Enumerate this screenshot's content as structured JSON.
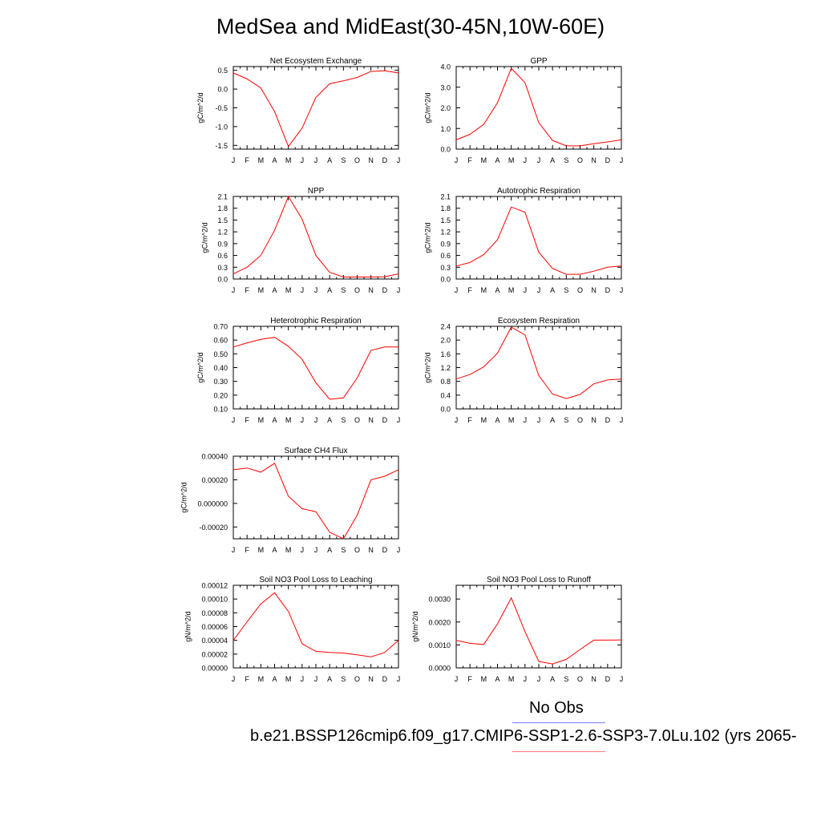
{
  "title": "MedSea and MidEast(30-45N,10W-60E)",
  "legend": {
    "obs_label": "No Obs",
    "case_label": "b.e21.BSSP126cmip6.f09_g17.CMIP6-SSP1-2.6-SSP3-7.0Lu.102 (yrs 2065-"
  },
  "colors": {
    "series": "#ff0000",
    "obs_line": "#7b7bff",
    "case_line": "#ff7b7b"
  },
  "months": [
    "J",
    "F",
    "M",
    "A",
    "M",
    "J",
    "J",
    "A",
    "S",
    "O",
    "N",
    "D",
    "J"
  ],
  "chart_data": [
    {
      "type": "line",
      "title": "Net Ecosystem Exchange",
      "ylabel": "gC/m^2/d",
      "ylim": [
        -1.6,
        0.6
      ],
      "yticks": [
        0.5,
        0.0,
        -0.5,
        -1.0,
        -1.5
      ],
      "ytick_labels": [
        "0.5",
        "0.0",
        "-0.5",
        "-1.0",
        "-1.5"
      ],
      "values": [
        0.43,
        0.27,
        0.03,
        -0.6,
        -1.53,
        -1.04,
        -0.22,
        0.14,
        0.22,
        0.31,
        0.47,
        0.49,
        0.43
      ]
    },
    {
      "type": "line",
      "title": "GPP",
      "ylabel": "gC/m^2/d",
      "ylim": [
        0.0,
        4.0
      ],
      "yticks": [
        4.0,
        3.0,
        2.0,
        1.0,
        0.0
      ],
      "ytick_labels": [
        "4.0",
        "3.0",
        "2.0",
        "1.0",
        "0.0"
      ],
      "values": [
        0.45,
        0.72,
        1.2,
        2.25,
        3.92,
        3.22,
        1.28,
        0.42,
        0.16,
        0.16,
        0.26,
        0.35,
        0.45
      ]
    },
    {
      "type": "line",
      "title": "NPP",
      "ylabel": "gC/m^2/d",
      "ylim": [
        0.0,
        2.1
      ],
      "yticks": [
        2.1,
        1.8,
        1.5,
        1.2,
        0.9,
        0.6,
        0.3,
        0.0
      ],
      "ytick_labels": [
        "2.1",
        "1.8",
        "1.5",
        "1.2",
        "0.9",
        "0.6",
        "0.3",
        "0.0"
      ],
      "values": [
        0.13,
        0.3,
        0.6,
        1.24,
        2.1,
        1.52,
        0.6,
        0.17,
        0.05,
        0.05,
        0.05,
        0.06,
        0.13
      ]
    },
    {
      "type": "line",
      "title": "Autotrophic Respiration",
      "ylabel": "gC/m^2/d",
      "ylim": [
        0.0,
        2.1
      ],
      "yticks": [
        2.1,
        1.8,
        1.5,
        1.2,
        0.9,
        0.6,
        0.3,
        0.0
      ],
      "ytick_labels": [
        "2.1",
        "1.8",
        "1.5",
        "1.2",
        "0.9",
        "0.6",
        "0.3",
        "0.0"
      ],
      "values": [
        0.33,
        0.42,
        0.62,
        1.0,
        1.83,
        1.7,
        0.68,
        0.27,
        0.12,
        0.12,
        0.2,
        0.3,
        0.33
      ]
    },
    {
      "type": "line",
      "title": "Heterotrophic Respiration",
      "ylabel": "gC/m^2/d",
      "ylim": [
        0.1,
        0.7
      ],
      "yticks": [
        0.7,
        0.6,
        0.5,
        0.4,
        0.3,
        0.2,
        0.1
      ],
      "ytick_labels": [
        "0.70",
        "0.60",
        "0.50",
        "0.40",
        "0.30",
        "0.20",
        "0.10"
      ],
      "values": [
        0.55,
        0.58,
        0.605,
        0.62,
        0.555,
        0.46,
        0.29,
        0.17,
        0.18,
        0.325,
        0.525,
        0.55,
        0.55
      ]
    },
    {
      "type": "line",
      "title": "Ecosystem Respiration",
      "ylabel": "gC/m^2/d",
      "ylim": [
        0.0,
        2.4
      ],
      "yticks": [
        2.4,
        2.0,
        1.6,
        1.2,
        0.8,
        0.4,
        0.0
      ],
      "ytick_labels": [
        "2.4",
        "2.0",
        "1.6",
        "1.2",
        "0.8",
        "0.4",
        "0.0"
      ],
      "values": [
        0.87,
        1.0,
        1.22,
        1.62,
        2.38,
        2.15,
        0.97,
        0.43,
        0.3,
        0.42,
        0.73,
        0.84,
        0.87
      ]
    },
    {
      "type": "line",
      "title": "Surface CH4 Flux",
      "ylabel": "gC/m^2/d",
      "ylim": [
        -0.0003,
        0.0004
      ],
      "yticks": [
        0.0004,
        0.0002,
        0.0,
        -0.0002
      ],
      "ytick_labels": [
        "0.00040",
        "0.00020",
        "0.000000",
        "-0.00020"
      ],
      "values": [
        0.000285,
        0.0003,
        0.000265,
        0.00034,
        6e-05,
        -4.5e-05,
        -7e-05,
        -0.000245,
        -0.0003,
        -0.0001,
        0.0002,
        0.00023,
        0.000285
      ]
    },
    {
      "type": "line",
      "title": "Soil NO3 Pool Loss to Leaching",
      "ylabel": "gN/m^2/d",
      "ylim": [
        0.0,
        0.00012
      ],
      "yticks": [
        0.00012,
        0.0001,
        8e-05,
        6e-05,
        4e-05,
        2e-05,
        0.0
      ],
      "ytick_labels": [
        "0.00012",
        "0.00010",
        "0.00008",
        "0.00006",
        "0.00004",
        "0.00002",
        "0.00000"
      ],
      "values": [
        4e-05,
        6.7e-05,
        9.3e-05,
        0.000109,
        8.2e-05,
        3.5e-05,
        2.4e-05,
        2.25e-05,
        2.15e-05,
        1.9e-05,
        1.6e-05,
        2.25e-05,
        4e-05
      ]
    },
    {
      "type": "line",
      "title": "Soil NO3 Pool Loss to Runoff",
      "ylabel": "gN/m^2/d",
      "ylim": [
        0.0,
        0.0036
      ],
      "yticks": [
        0.003,
        0.002,
        0.001,
        0.0
      ],
      "ytick_labels": [
        "0.0030",
        "0.0020",
        "0.0010",
        "0.0000"
      ],
      "values": [
        0.0012,
        0.00107,
        0.00102,
        0.00192,
        0.00305,
        0.00158,
        0.00028,
        0.00017,
        0.00037,
        0.0008,
        0.00121,
        0.00121,
        0.00122
      ]
    }
  ]
}
